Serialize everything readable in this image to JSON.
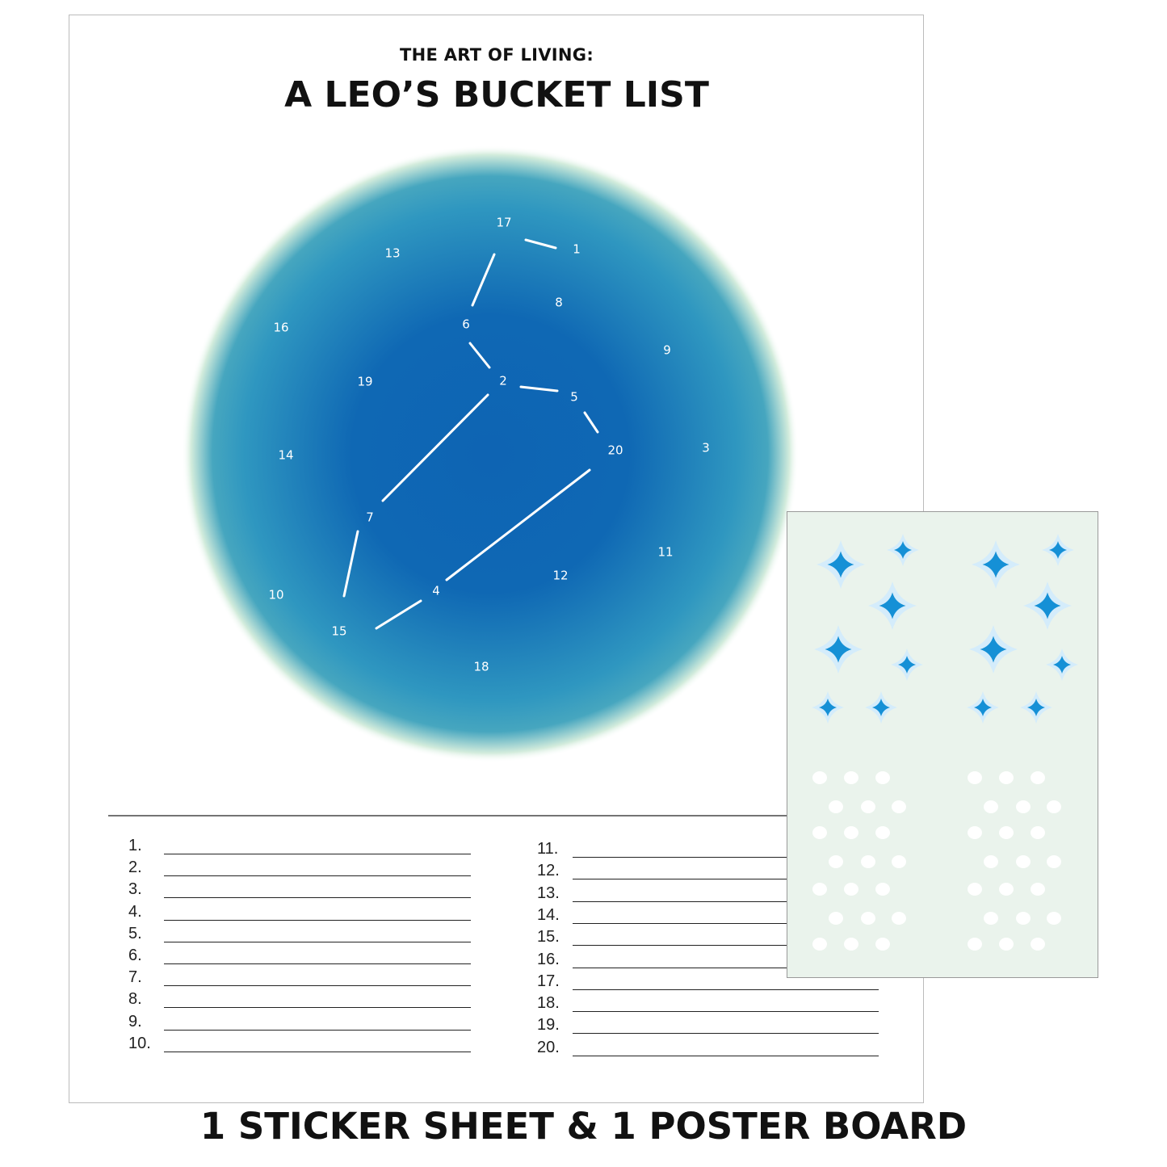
{
  "poster": {
    "subtitle": "THE ART OF LIVING:",
    "title": "A LEO’S BUCKET LIST",
    "constellation_labels": [
      "17",
      "1",
      "13",
      "8",
      "16",
      "6",
      "9",
      "19",
      "2",
      "5",
      "20",
      "3",
      "14",
      "7",
      "11",
      "12",
      "10",
      "4",
      "15",
      "18"
    ],
    "list_left": [
      "1.",
      "2.",
      "3.",
      "4.",
      "5.",
      "6.",
      "7.",
      "8.",
      "9.",
      "10."
    ],
    "list_right": [
      "11.",
      "12.",
      "13.",
      "14.",
      "15.",
      "16.",
      "17.",
      "18.",
      "19.",
      "20."
    ],
    "colors": {
      "circle_center": "#0e64b3",
      "circle_mid": "#2e98c0",
      "circle_edge": "#d8eedd"
    }
  },
  "sticker_sheet": {
    "background": "#eaf3ec",
    "star_color": "#1590d6",
    "star_glow": "#d4ecfb"
  },
  "footer": {
    "text": "1 STICKER SHEET & 1 POSTER BOARD"
  }
}
